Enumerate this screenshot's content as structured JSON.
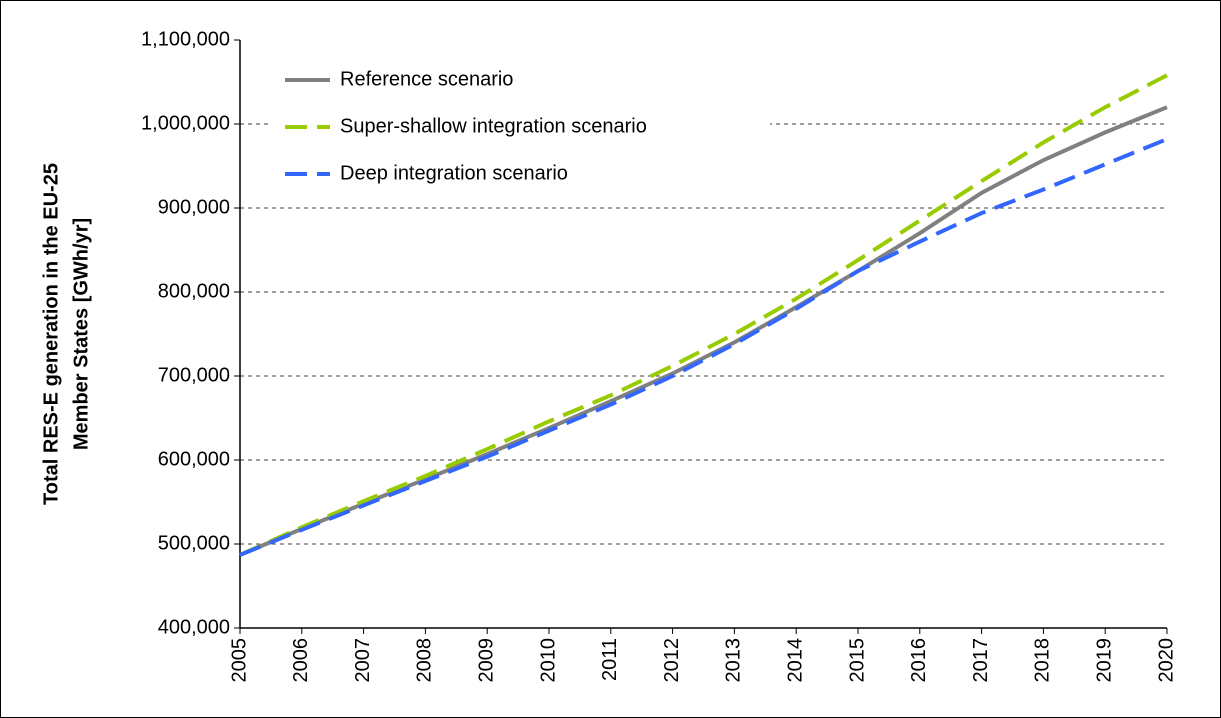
{
  "chart_data": {
    "type": "line",
    "ylabel": [
      "Total RES-E generation in the EU-25",
      "Member States [GWh/yr]"
    ],
    "categories": [
      "2005",
      "2006",
      "2007",
      "2008",
      "2009",
      "2010",
      "2011",
      "2012",
      "2013",
      "2014",
      "2015",
      "2016",
      "2017",
      "2018",
      "2019",
      "2020"
    ],
    "series": [
      {
        "name": "Reference scenario",
        "color": "#808080",
        "dash": false,
        "values": [
          487000,
          518000,
          548000,
          577000,
          607000,
          638000,
          670000,
          703000,
          740000,
          782000,
          825000,
          870000,
          918000,
          957000,
          990000,
          1020000
        ]
      },
      {
        "name": "Super-shallow integration scenario",
        "color": "#99cc00",
        "dash": true,
        "values": [
          487000,
          520000,
          551000,
          581000,
          613000,
          646000,
          677000,
          712000,
          750000,
          792000,
          838000,
          885000,
          932000,
          978000,
          1020000,
          1058000
        ]
      },
      {
        "name": "Deep integration scenario",
        "color": "#3366ff",
        "dash": true,
        "values": [
          487000,
          517000,
          546000,
          575000,
          604000,
          635000,
          666000,
          700000,
          738000,
          780000,
          825000,
          860000,
          894000,
          922000,
          952000,
          982000
        ]
      }
    ],
    "ylim": [
      400000,
      1100000
    ],
    "yticks": [
      {
        "value": 400000,
        "label": "400,000"
      },
      {
        "value": 500000,
        "label": "500,000"
      },
      {
        "value": 600000,
        "label": "600,000"
      },
      {
        "value": 700000,
        "label": "700,000"
      },
      {
        "value": 800000,
        "label": "800,000"
      },
      {
        "value": 900000,
        "label": "900,000"
      },
      {
        "value": 1000000,
        "label": "1,000,000"
      },
      {
        "value": 1100000,
        "label": "1,100,000"
      }
    ],
    "grid": true,
    "legend": "upper left"
  }
}
